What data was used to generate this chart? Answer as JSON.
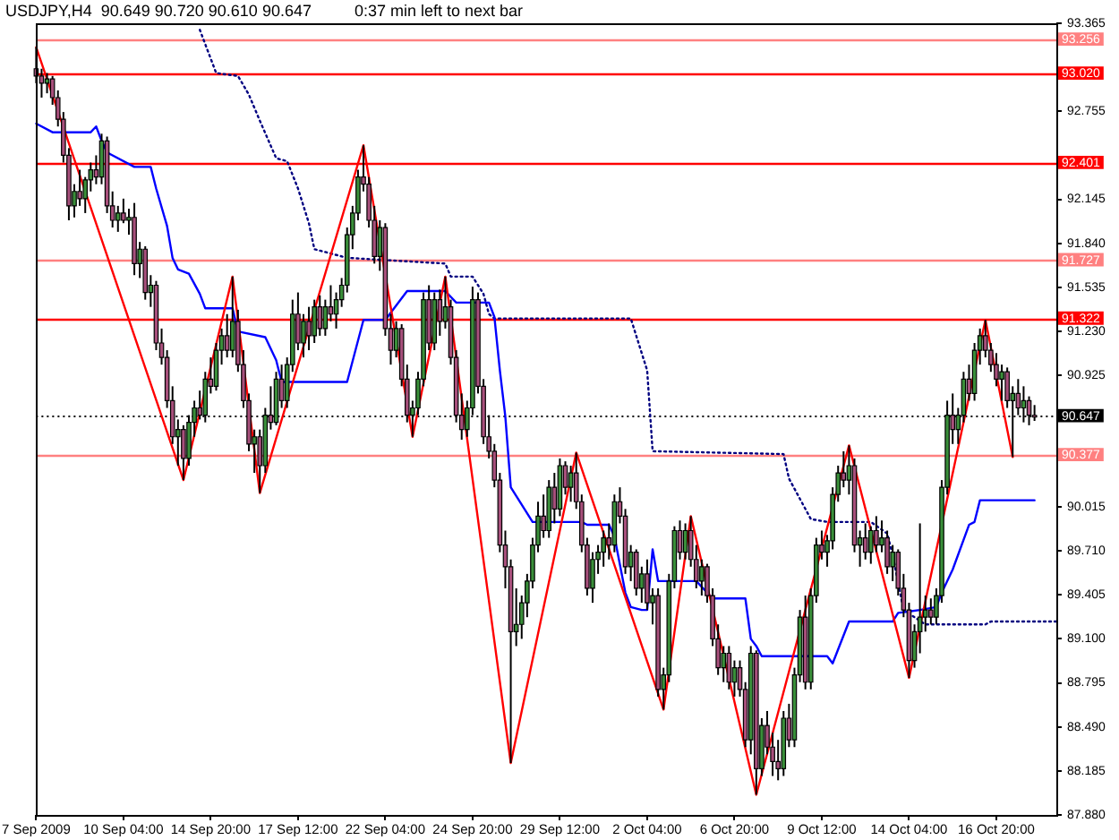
{
  "chart_data": {
    "type": "candlestick",
    "title": "USDJPY,H4  90.649 90.720 90.610 90.647",
    "annotations": [
      "0:37 min left to next bar"
    ],
    "categories": [
      "7 Sep 2009",
      null,
      null,
      null,
      null,
      null,
      null,
      null,
      null,
      null,
      null,
      null,
      null,
      null,
      null,
      null,
      "10 Sep 04:00",
      null,
      null,
      null,
      null,
      null,
      null,
      null,
      null,
      null,
      null,
      null,
      null,
      null,
      null,
      null,
      "14 Sep 20:00",
      null,
      null,
      null,
      null,
      null,
      null,
      null,
      null,
      null,
      null,
      null,
      null,
      null,
      null,
      null,
      "17 Sep 12:00",
      null,
      null,
      null,
      null,
      null,
      null,
      null,
      null,
      null,
      null,
      null,
      null,
      null,
      null,
      null,
      "22 Sep 04:00",
      null,
      null,
      null,
      null,
      null,
      null,
      null,
      null,
      null,
      null,
      null,
      null,
      null,
      null,
      null,
      "24 Sep 20:00",
      null,
      null,
      null,
      null,
      null,
      null,
      null,
      null,
      null,
      null,
      null,
      null,
      null,
      null,
      null,
      "29 Sep 12:00",
      null,
      null,
      null,
      null,
      null,
      null,
      null,
      null,
      null,
      null,
      null,
      null,
      null,
      null,
      null,
      "2 Oct 04:00",
      null,
      null,
      null,
      null,
      null,
      null,
      null,
      null,
      null,
      null,
      null,
      null,
      null,
      null,
      null,
      "6 Oct 20:00",
      null,
      null,
      null,
      null,
      null,
      null,
      null,
      null,
      null,
      null,
      null,
      null,
      null,
      null,
      null,
      "9 Oct 12:00",
      null,
      null,
      null,
      null,
      null,
      null,
      null,
      null,
      null,
      null,
      null,
      null,
      null,
      null,
      null,
      "14 Oct 04:00",
      null,
      null,
      null,
      null,
      null,
      null,
      null,
      null,
      null,
      null,
      null,
      null,
      null,
      null,
      null,
      "16 Oct 20:00",
      null,
      null,
      null,
      null,
      null,
      null,
      null,
      null,
      null,
      null,
      null
    ],
    "ohlc": [
      [
        93.05,
        93.2,
        92.95,
        93.0
      ],
      [
        93.0,
        93.05,
        92.85,
        92.95
      ],
      [
        92.95,
        93.02,
        92.88,
        92.98
      ],
      [
        92.98,
        93.0,
        92.8,
        92.85
      ],
      [
        92.85,
        92.9,
        92.65,
        92.7
      ],
      [
        92.7,
        92.75,
        92.4,
        92.45
      ],
      [
        92.45,
        92.5,
        92.0,
        92.1
      ],
      [
        92.1,
        92.25,
        92.02,
        92.2
      ],
      [
        92.2,
        92.35,
        92.1,
        92.15
      ],
      [
        92.15,
        92.3,
        92.05,
        92.28
      ],
      [
        92.28,
        92.4,
        92.2,
        92.35
      ],
      [
        92.35,
        92.45,
        92.25,
        92.3
      ],
      [
        92.3,
        92.6,
        92.25,
        92.55
      ],
      [
        92.55,
        92.58,
        92.05,
        92.1
      ],
      [
        92.1,
        92.2,
        91.95,
        92.0
      ],
      [
        92.0,
        92.1,
        91.92,
        92.05
      ],
      [
        92.05,
        92.15,
        91.98,
        92.0
      ],
      [
        92.0,
        92.08,
        91.9,
        92.02
      ],
      [
        92.02,
        92.12,
        91.62,
        91.7
      ],
      [
        91.7,
        91.85,
        91.6,
        91.8
      ],
      [
        91.8,
        91.82,
        91.45,
        91.5
      ],
      [
        91.5,
        91.62,
        91.4,
        91.55
      ],
      [
        91.55,
        91.58,
        91.1,
        91.15
      ],
      [
        91.15,
        91.25,
        91.0,
        91.05
      ],
      [
        91.05,
        91.1,
        90.7,
        90.75
      ],
      [
        90.75,
        90.85,
        90.45,
        90.5
      ],
      [
        90.5,
        90.62,
        90.3,
        90.55
      ],
      [
        90.55,
        90.58,
        90.2,
        90.35
      ],
      [
        90.35,
        90.65,
        90.3,
        90.6
      ],
      [
        90.6,
        90.75,
        90.5,
        90.7
      ],
      [
        90.7,
        90.82,
        90.62,
        90.65
      ],
      [
        90.65,
        90.95,
        90.6,
        90.9
      ],
      [
        90.9,
        91.05,
        90.8,
        90.85
      ],
      [
        90.85,
        91.15,
        90.82,
        91.1
      ],
      [
        91.1,
        91.25,
        91.0,
        91.2
      ],
      [
        91.2,
        91.35,
        91.05,
        91.1
      ],
      [
        91.1,
        91.61,
        91.05,
        91.3
      ],
      [
        91.3,
        91.38,
        90.95,
        91.0
      ],
      [
        91.0,
        91.1,
        90.7,
        90.75
      ],
      [
        90.75,
        90.8,
        90.4,
        90.45
      ],
      [
        90.45,
        90.55,
        90.25,
        90.5
      ],
      [
        90.5,
        90.55,
        90.11,
        90.3
      ],
      [
        90.3,
        90.7,
        90.25,
        90.65
      ],
      [
        90.65,
        90.85,
        90.55,
        90.6
      ],
      [
        90.6,
        90.95,
        90.58,
        90.9
      ],
      [
        90.9,
        91.0,
        90.7,
        90.75
      ],
      [
        90.75,
        91.05,
        90.7,
        91.0
      ],
      [
        91.0,
        91.45,
        90.95,
        91.35
      ],
      [
        91.35,
        91.5,
        91.1,
        91.15
      ],
      [
        91.15,
        91.35,
        91.05,
        91.3
      ],
      [
        91.3,
        91.4,
        91.1,
        91.2
      ],
      [
        91.2,
        91.45,
        91.15,
        91.4
      ],
      [
        91.4,
        91.48,
        91.2,
        91.25
      ],
      [
        91.25,
        91.45,
        91.2,
        91.4
      ],
      [
        91.4,
        91.55,
        91.3,
        91.35
      ],
      [
        91.35,
        91.5,
        91.25,
        91.45
      ],
      [
        91.45,
        91.6,
        91.4,
        91.55
      ],
      [
        91.55,
        91.95,
        91.5,
        91.9
      ],
      [
        91.9,
        92.1,
        91.8,
        92.05
      ],
      [
        92.05,
        92.35,
        92.0,
        92.3
      ],
      [
        92.3,
        92.52,
        92.2,
        92.25
      ],
      [
        92.25,
        92.3,
        91.95,
        92.0
      ],
      [
        92.0,
        92.1,
        91.7,
        91.75
      ],
      [
        91.75,
        92.0,
        91.65,
        91.95
      ],
      [
        91.95,
        91.98,
        91.2,
        91.25
      ],
      [
        91.25,
        91.35,
        91.0,
        91.1
      ],
      [
        91.1,
        91.3,
        91.05,
        91.25
      ],
      [
        91.25,
        91.28,
        90.85,
        90.9
      ],
      [
        90.9,
        91.0,
        90.6,
        90.65
      ],
      [
        90.65,
        90.75,
        90.5,
        90.7
      ],
      [
        90.7,
        90.95,
        90.65,
        90.9
      ],
      [
        90.9,
        91.5,
        90.85,
        91.45
      ],
      [
        91.45,
        91.55,
        91.1,
        91.15
      ],
      [
        91.15,
        91.5,
        91.1,
        91.45
      ],
      [
        91.45,
        91.52,
        91.2,
        91.3
      ],
      [
        91.3,
        91.61,
        91.25,
        91.4
      ],
      [
        91.4,
        91.45,
        91.0,
        91.05
      ],
      [
        91.05,
        91.1,
        90.6,
        90.65
      ],
      [
        90.65,
        90.8,
        90.48,
        90.55
      ],
      [
        90.55,
        90.75,
        90.5,
        90.7
      ],
      [
        90.7,
        91.54,
        90.65,
        91.45
      ],
      [
        91.45,
        91.5,
        90.8,
        90.85
      ],
      [
        90.85,
        90.9,
        90.45,
        90.5
      ],
      [
        90.5,
        90.65,
        90.35,
        90.4
      ],
      [
        90.4,
        90.45,
        90.15,
        90.2
      ],
      [
        90.2,
        90.25,
        89.7,
        89.75
      ],
      [
        89.75,
        89.85,
        89.45,
        89.6
      ],
      [
        89.6,
        89.65,
        88.24,
        89.15
      ],
      [
        89.15,
        89.45,
        89.05,
        89.2
      ],
      [
        89.2,
        89.4,
        89.1,
        89.35
      ],
      [
        89.35,
        89.55,
        89.25,
        89.5
      ],
      [
        89.5,
        89.8,
        89.45,
        89.75
      ],
      [
        89.75,
        90.05,
        89.7,
        89.95
      ],
      [
        89.95,
        90.1,
        89.8,
        89.85
      ],
      [
        89.85,
        90.2,
        89.8,
        90.15
      ],
      [
        90.15,
        90.25,
        89.9,
        90.0
      ],
      [
        90.0,
        90.35,
        89.95,
        90.3
      ],
      [
        90.3,
        90.33,
        90.1,
        90.15
      ],
      [
        90.15,
        90.3,
        90.05,
        90.25
      ],
      [
        90.25,
        90.39,
        90.0,
        90.05
      ],
      [
        90.05,
        90.1,
        89.7,
        89.75
      ],
      [
        89.75,
        89.8,
        89.4,
        89.45
      ],
      [
        89.45,
        89.7,
        89.35,
        89.65
      ],
      [
        89.65,
        89.75,
        89.55,
        89.7
      ],
      [
        89.7,
        89.85,
        89.6,
        89.8
      ],
      [
        89.8,
        89.9,
        89.65,
        89.75
      ],
      [
        89.75,
        90.1,
        89.7,
        90.05
      ],
      [
        90.05,
        90.15,
        89.9,
        89.95
      ],
      [
        89.95,
        90.0,
        89.55,
        89.6
      ],
      [
        89.6,
        89.75,
        89.5,
        89.7
      ],
      [
        89.7,
        89.72,
        89.4,
        89.45
      ],
      [
        89.45,
        89.6,
        89.35,
        89.55
      ],
      [
        89.55,
        89.65,
        89.3,
        89.35
      ],
      [
        89.35,
        89.45,
        89.2,
        89.4
      ],
      [
        89.4,
        89.45,
        88.7,
        88.75
      ],
      [
        88.75,
        88.9,
        88.61,
        88.85
      ],
      [
        88.85,
        89.55,
        88.8,
        89.5
      ],
      [
        89.5,
        89.88,
        89.45,
        89.85
      ],
      [
        89.85,
        89.92,
        89.65,
        89.7
      ],
      [
        89.7,
        89.9,
        89.65,
        89.85
      ],
      [
        89.85,
        89.95,
        89.6,
        89.65
      ],
      [
        89.65,
        89.75,
        89.45,
        89.5
      ],
      [
        89.5,
        89.65,
        89.4,
        89.6
      ],
      [
        89.6,
        89.62,
        89.35,
        89.4
      ],
      [
        89.4,
        89.45,
        89.05,
        89.1
      ],
      [
        89.1,
        89.2,
        88.85,
        88.9
      ],
      [
        88.9,
        89.05,
        88.8,
        89.0
      ],
      [
        89.0,
        89.05,
        88.75,
        88.8
      ],
      [
        88.8,
        88.95,
        88.7,
        88.9
      ],
      [
        88.9,
        88.95,
        88.7,
        88.75
      ],
      [
        88.75,
        88.8,
        88.35,
        88.4
      ],
      [
        88.4,
        89.05,
        88.3,
        89.0
      ],
      [
        89.0,
        89.02,
        88.02,
        88.2
      ],
      [
        88.2,
        88.55,
        88.15,
        88.5
      ],
      [
        88.5,
        88.6,
        88.3,
        88.35
      ],
      [
        88.35,
        88.45,
        88.15,
        88.25
      ],
      [
        88.25,
        88.4,
        88.12,
        88.2
      ],
      [
        88.2,
        88.6,
        88.15,
        88.55
      ],
      [
        88.55,
        88.65,
        88.35,
        88.4
      ],
      [
        88.4,
        88.9,
        88.35,
        88.85
      ],
      [
        88.85,
        89.3,
        88.8,
        89.25
      ],
      [
        89.25,
        89.4,
        88.75,
        88.8
      ],
      [
        88.8,
        89.45,
        88.75,
        89.4
      ],
      [
        89.4,
        89.8,
        89.35,
        89.75
      ],
      [
        89.75,
        89.85,
        89.65,
        89.7
      ],
      [
        89.7,
        89.82,
        89.6,
        89.78
      ],
      [
        89.78,
        90.15,
        89.72,
        90.1
      ],
      [
        90.1,
        90.3,
        90.05,
        90.25
      ],
      [
        90.25,
        90.4,
        90.15,
        90.2
      ],
      [
        90.2,
        90.44,
        90.1,
        90.3
      ],
      [
        90.3,
        90.35,
        89.7,
        89.75
      ],
      [
        89.75,
        89.85,
        89.6,
        89.8
      ],
      [
        89.8,
        89.9,
        89.65,
        89.7
      ],
      [
        89.7,
        89.88,
        89.62,
        89.85
      ],
      [
        89.85,
        89.95,
        89.7,
        89.75
      ],
      [
        89.75,
        89.92,
        89.7,
        89.8
      ],
      [
        89.8,
        89.85,
        89.55,
        89.6
      ],
      [
        89.6,
        89.75,
        89.5,
        89.7
      ],
      [
        89.7,
        89.72,
        89.4,
        89.45
      ],
      [
        89.45,
        89.55,
        89.25,
        89.3
      ],
      [
        89.3,
        89.35,
        88.83,
        88.95
      ],
      [
        88.95,
        89.2,
        88.9,
        89.15
      ],
      [
        89.15,
        89.9,
        89.0,
        89.25
      ],
      [
        89.25,
        89.4,
        89.15,
        89.3
      ],
      [
        89.3,
        89.38,
        89.2,
        89.25
      ],
      [
        89.25,
        89.45,
        89.2,
        89.4
      ],
      [
        89.4,
        90.2,
        89.35,
        90.15
      ],
      [
        90.15,
        90.75,
        90.1,
        90.65
      ],
      [
        90.65,
        90.8,
        90.45,
        90.55
      ],
      [
        90.55,
        90.7,
        90.45,
        90.65
      ],
      [
        90.65,
        90.95,
        90.6,
        90.9
      ],
      [
        90.9,
        91.0,
        90.75,
        90.8
      ],
      [
        90.8,
        91.15,
        90.75,
        91.1
      ],
      [
        91.1,
        91.25,
        91.0,
        91.2
      ],
      [
        91.2,
        91.31,
        91.05,
        91.1
      ],
      [
        91.1,
        91.15,
        90.95,
        91.0
      ],
      [
        91.0,
        91.08,
        90.85,
        90.9
      ],
      [
        90.9,
        91.0,
        90.75,
        90.95
      ],
      [
        90.95,
        90.98,
        90.7,
        90.75
      ],
      [
        90.75,
        90.85,
        90.36,
        90.8
      ],
      [
        90.8,
        90.9,
        90.65,
        90.7
      ],
      [
        90.7,
        90.85,
        90.6,
        90.75
      ],
      [
        90.75,
        90.78,
        90.58,
        90.65
      ],
      [
        90.649,
        90.72,
        90.61,
        90.647
      ],
      null,
      null,
      null,
      null
    ],
    "colors": [
      "#a8507c",
      "#a8507c",
      "#3a8f3a",
      "#a8507c",
      "#a8507c",
      "#a8507c",
      "#a8507c",
      "#3a8f3a",
      "#a8507c",
      "#3a8f3a",
      "#3a8f3a",
      "#a8507c",
      "#3a8f3a",
      "#a8507c",
      "#a8507c",
      "#3a8f3a",
      "#a8507c",
      "#3a8f3a",
      "#a8507c",
      "#3a8f3a",
      "#a8507c",
      "#3a8f3a",
      "#a8507c",
      "#a8507c",
      "#a8507c",
      "#a8507c",
      "#3a8f3a",
      "#a8507c",
      "#3a8f3a",
      "#3a8f3a",
      "#a8507c",
      "#3a8f3a",
      "#a8507c",
      "#3a8f3a",
      "#3a8f3a",
      "#a8507c",
      "#3a8f3a",
      "#a8507c",
      "#a8507c",
      "#a8507c",
      "#3a8f3a",
      "#a8507c",
      "#3a8f3a",
      "#a8507c",
      "#3a8f3a",
      "#a8507c",
      "#3a8f3a",
      "#3a8f3a",
      "#a8507c",
      "#3a8f3a",
      "#a8507c",
      "#3a8f3a",
      "#a8507c",
      "#3a8f3a",
      "#a8507c",
      "#3a8f3a",
      "#3a8f3a",
      "#3a8f3a",
      "#3a8f3a",
      "#3a8f3a",
      "#a8507c",
      "#a8507c",
      "#a8507c",
      "#3a8f3a",
      "#a8507c",
      "#a8507c",
      "#3a8f3a",
      "#a8507c",
      "#a8507c",
      "#3a8f3a",
      "#3a8f3a",
      "#3a8f3a",
      "#a8507c",
      "#3a8f3a",
      "#a8507c",
      "#3a8f3a",
      "#a8507c",
      "#a8507c",
      "#a8507c",
      "#3a8f3a",
      "#3a8f3a",
      "#a8507c",
      "#a8507c",
      "#a8507c",
      "#a8507c",
      "#a8507c",
      "#a8507c",
      "#a8507c",
      "#3a8f3a",
      "#3a8f3a",
      "#3a8f3a",
      "#3a8f3a",
      "#3a8f3a",
      "#a8507c",
      "#3a8f3a",
      "#a8507c",
      "#3a8f3a",
      "#a8507c",
      "#3a8f3a",
      "#a8507c",
      "#a8507c",
      "#a8507c",
      "#3a8f3a",
      "#3a8f3a",
      "#3a8f3a",
      "#a8507c",
      "#3a8f3a",
      "#a8507c",
      "#a8507c",
      "#3a8f3a",
      "#a8507c",
      "#3a8f3a",
      "#a8507c",
      "#3a8f3a",
      "#a8507c",
      "#3a8f3a",
      "#3a8f3a",
      "#3a8f3a",
      "#a8507c",
      "#3a8f3a",
      "#a8507c",
      "#a8507c",
      "#3a8f3a",
      "#a8507c",
      "#a8507c",
      "#a8507c",
      "#3a8f3a",
      "#a8507c",
      "#3a8f3a",
      "#a8507c",
      "#a8507c",
      "#3a8f3a",
      "#a8507c",
      "#3a8f3a",
      "#a8507c",
      "#a8507c",
      "#a8507c",
      "#3a8f3a",
      "#a8507c",
      "#3a8f3a",
      "#3a8f3a",
      "#a8507c",
      "#3a8f3a",
      "#3a8f3a",
      "#a8507c",
      "#3a8f3a",
      "#3a8f3a",
      "#3a8f3a",
      "#a8507c",
      "#3a8f3a",
      "#a8507c",
      "#3a8f3a",
      "#a8507c",
      "#3a8f3a",
      "#a8507c",
      "#3a8f3a",
      "#a8507c",
      "#3a8f3a",
      "#a8507c",
      "#a8507c",
      "#a8507c",
      "#3a8f3a",
      "#3a8f3a",
      "#3a8f3a",
      "#a8507c",
      "#3a8f3a",
      "#3a8f3a",
      "#3a8f3a",
      "#a8507c",
      "#3a8f3a",
      "#3a8f3a",
      "#a8507c",
      "#3a8f3a",
      "#3a8f3a",
      "#a8507c",
      "#a8507c",
      "#a8507c",
      "#3a8f3a",
      "#a8507c",
      "#3a8f3a",
      "#a8507c",
      "#3a8f3a",
      "#a8507c",
      "#a8507c",
      null,
      null,
      null,
      null
    ],
    "series": [
      {
        "type": "line",
        "color": "#ff0000",
        "values": [
          93.2,
          null,
          null,
          null,
          null,
          null,
          null,
          null,
          null,
          null,
          null,
          null,
          null,
          null,
          null,
          null,
          null,
          null,
          null,
          null,
          null,
          null,
          null,
          null,
          null,
          null,
          null,
          90.2,
          null,
          null,
          null,
          null,
          null,
          null,
          null,
          null,
          91.61,
          null,
          null,
          null,
          null,
          90.11,
          null,
          null,
          null,
          null,
          null,
          null,
          null,
          null,
          null,
          null,
          null,
          null,
          null,
          null,
          null,
          null,
          null,
          null,
          92.52,
          null,
          null,
          null,
          null,
          null,
          null,
          null,
          null,
          90.5,
          null,
          null,
          null,
          null,
          null,
          91.61,
          null,
          null,
          null,
          null,
          null,
          null,
          null,
          null,
          null,
          null,
          null,
          88.24,
          null,
          null,
          null,
          null,
          null,
          null,
          null,
          null,
          null,
          null,
          null,
          90.39,
          null,
          null,
          null,
          null,
          null,
          null,
          null,
          null,
          null,
          null,
          null,
          null,
          null,
          null,
          null,
          88.61,
          null,
          null,
          null,
          null,
          89.95,
          null,
          null,
          null,
          null,
          null,
          null,
          null,
          null,
          null,
          null,
          null,
          88.02,
          null,
          null,
          null,
          null,
          null,
          null,
          null,
          null,
          null,
          null,
          null,
          null,
          null,
          null,
          null,
          null,
          90.44,
          null,
          null,
          null,
          null,
          null,
          null,
          null,
          null,
          null,
          null,
          88.83,
          null,
          null,
          null,
          null,
          null,
          null,
          null,
          null,
          null,
          null,
          null,
          null,
          null,
          91.31,
          null,
          null,
          null,
          null,
          90.36,
          null,
          null,
          null,
          null,
          null,
          null,
          null,
          null
        ]
      },
      {
        "type": "line",
        "color": "#0000ff",
        "values": [
          92.67,
          null,
          null,
          92.61,
          null,
          null,
          null,
          null,
          null,
          null,
          92.61,
          92.65,
          92.55,
          92.47,
          null,
          null,
          null,
          null,
          92.37,
          null,
          null,
          92.37,
          92.22,
          null,
          91.96,
          91.74,
          91.66,
          null,
          91.63,
          null,
          91.49,
          91.39,
          null,
          null,
          null,
          null,
          91.39,
          91.23,
          null,
          null,
          null,
          null,
          91.19,
          null,
          91.03,
          90.88,
          null,
          null,
          null,
          null,
          null,
          null,
          null,
          null,
          null,
          null,
          null,
          90.88,
          null,
          null,
          91.31,
          null,
          null,
          null,
          91.31,
          null,
          null,
          null,
          91.51,
          null,
          null,
          null,
          null,
          null,
          null,
          91.51,
          null,
          91.43,
          null,
          null,
          null,
          null,
          null,
          91.43,
          91.33,
          90.96,
          90.64,
          90.15,
          null,
          null,
          null,
          89.91,
          null,
          null,
          null,
          null,
          null,
          null,
          null,
          null,
          89.91,
          89.89,
          null,
          null,
          null,
          89.89,
          89.81,
          null,
          89.42,
          89.32,
          null,
          89.3,
          89.3,
          89.72,
          89.5,
          null,
          null,
          null,
          null,
          null,
          null,
          89.5,
          null,
          null,
          89.38,
          null,
          null,
          null,
          null,
          null,
          89.38,
          89.1,
          89.05,
          88.98,
          null,
          null,
          null,
          null,
          null,
          null,
          null,
          null,
          null,
          null,
          null,
          88.98,
          88.93,
          null,
          null,
          89.22,
          null,
          null,
          null,
          null,
          null,
          null,
          null,
          89.22,
          89.28,
          null,
          null,
          null,
          89.3,
          null,
          null,
          89.32,
          89.42,
          null,
          89.58,
          null,
          null,
          89.89,
          89.91,
          90.06,
          null,
          null,
          null,
          null,
          null,
          null,
          null,
          null,
          null,
          90.06,
          null,
          null,
          null,
          null
        ]
      },
      {
        "type": "line",
        "color": "#000080",
        "line_style": "dotted",
        "values": [
          null,
          null,
          null,
          null,
          null,
          null,
          null,
          null,
          null,
          null,
          null,
          null,
          null,
          null,
          null,
          null,
          null,
          null,
          null,
          null,
          null,
          null,
          null,
          null,
          null,
          null,
          null,
          null,
          null,
          null,
          93.32,
          null,
          null,
          93.02,
          null,
          null,
          null,
          93.0,
          null,
          92.87,
          null,
          92.69,
          null,
          null,
          92.43,
          null,
          92.41,
          null,
          92.22,
          null,
          91.98,
          91.8,
          null,
          null,
          null,
          null,
          null,
          91.74,
          null,
          null,
          null,
          null,
          null,
          null,
          null,
          null,
          91.72,
          null,
          null,
          null,
          null,
          null,
          null,
          null,
          null,
          91.7,
          91.61,
          null,
          null,
          null,
          91.61,
          null,
          91.49,
          91.35,
          91.32,
          null,
          null,
          null,
          null,
          null,
          null,
          null,
          null,
          null,
          null,
          null,
          null,
          null,
          null,
          null,
          null,
          null,
          null,
          null,
          null,
          null,
          null,
          null,
          null,
          91.32,
          null,
          null,
          90.96,
          90.4,
          null,
          null,
          null,
          null,
          null,
          null,
          null,
          null,
          null,
          null,
          null,
          null,
          null,
          null,
          null,
          null,
          null,
          null,
          null,
          null,
          null,
          null,
          null,
          90.38,
          90.21,
          null,
          90.07,
          null,
          89.93,
          null,
          null,
          89.91,
          null,
          null,
          null,
          null,
          null,
          null,
          null,
          89.91,
          null,
          null,
          89.83,
          89.68,
          null,
          89.3,
          null,
          null,
          null,
          89.2,
          null,
          null,
          null,
          null,
          null,
          null,
          null,
          null,
          null,
          null,
          89.2,
          89.22,
          null,
          null,
          null,
          null,
          null,
          null,
          null,
          null,
          null,
          null,
          null,
          89.22
        ]
      }
    ],
    "ylim": [
      87.88,
      93.365
    ],
    "yticks": [
      93.365,
      92.755,
      92.145,
      {
        "value": 91.84,
        "label": "91.840"
      },
      91.535,
      {
        "value": 91.23,
        "label": "91.230"
      },
      90.925,
      90.015,
      {
        "value": 89.71,
        "label": "89.710"
      },
      89.405,
      {
        "value": 89.1,
        "label": "89.100"
      },
      88.795,
      {
        "value": 88.49,
        "label": "88.490"
      },
      88.185,
      {
        "value": 87.88,
        "label": "87.880"
      }
    ],
    "ref_lines": [
      {
        "axis": "y",
        "value": 93.256,
        "label": "93.256",
        "color": "#ff8080"
      },
      {
        "axis": "y",
        "value": 93.02,
        "label": "93.020",
        "color": "#ff0000"
      },
      {
        "axis": "y",
        "value": 92.401,
        "label": "92.401",
        "color": "#ff0000"
      },
      {
        "axis": "y",
        "value": 91.727,
        "label": "91.727",
        "color": "#ff8080"
      },
      {
        "axis": "y",
        "value": 91.322,
        "label": "91.322",
        "color": "#ff0000"
      },
      {
        "axis": "y",
        "value": 90.377,
        "label": "90.377",
        "color": "#ff8080"
      },
      {
        "axis": "y",
        "value": 90.647,
        "label": "90.647",
        "color": "#000000",
        "line_style": "dotted"
      }
    ],
    "grid": false,
    "legend": false,
    "marker": "none"
  }
}
